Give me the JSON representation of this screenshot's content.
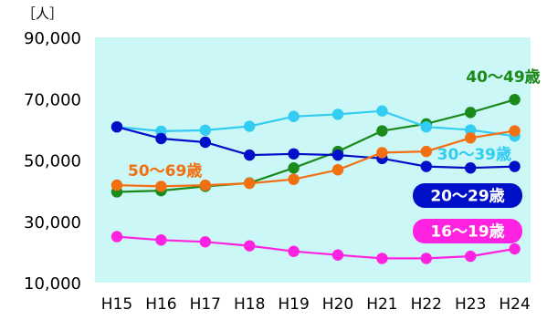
{
  "chart_data": {
    "type": "line",
    "unit_label": "［人］",
    "categories": [
      "H15",
      "H16",
      "H17",
      "H18",
      "H19",
      "H20",
      "H21",
      "H22",
      "H23",
      "H24"
    ],
    "ylim": [
      10000,
      90000
    ],
    "yticks": [
      10000,
      30000,
      50000,
      70000,
      90000
    ],
    "ytick_labels": [
      "10,000",
      "30,000",
      "50,000",
      "70,000",
      "90,000"
    ],
    "grid": false,
    "plot_background": "#ccf7f7",
    "series": [
      {
        "name": "40～49歳",
        "color": "#1a8a1a",
        "label_style": "text",
        "values": [
          39600,
          40000,
          41400,
          42500,
          47400,
          52800,
          59500,
          61800,
          65500,
          69700
        ]
      },
      {
        "name": "30～39歳",
        "color": "#33ccf2",
        "label_style": "text",
        "values": [
          60800,
          59400,
          59700,
          61000,
          64200,
          64900,
          66000,
          60800,
          59800,
          57800
        ]
      },
      {
        "name": "20～29歳",
        "color": "#0010c8",
        "label_style": "badge",
        "values": [
          60800,
          57000,
          55800,
          51600,
          52000,
          51600,
          50500,
          47900,
          47400,
          47900
        ]
      },
      {
        "name": "50～69歳",
        "color": "#f26f12",
        "label_style": "text",
        "values": [
          41800,
          41400,
          41800,
          42400,
          43700,
          46800,
          52400,
          52800,
          57200,
          59500
        ]
      },
      {
        "name": "16～19歳",
        "color": "#ff22e0",
        "label_style": "badge",
        "values": [
          25000,
          23900,
          23300,
          22000,
          20200,
          19000,
          17900,
          17900,
          18600,
          21000
        ]
      }
    ]
  }
}
